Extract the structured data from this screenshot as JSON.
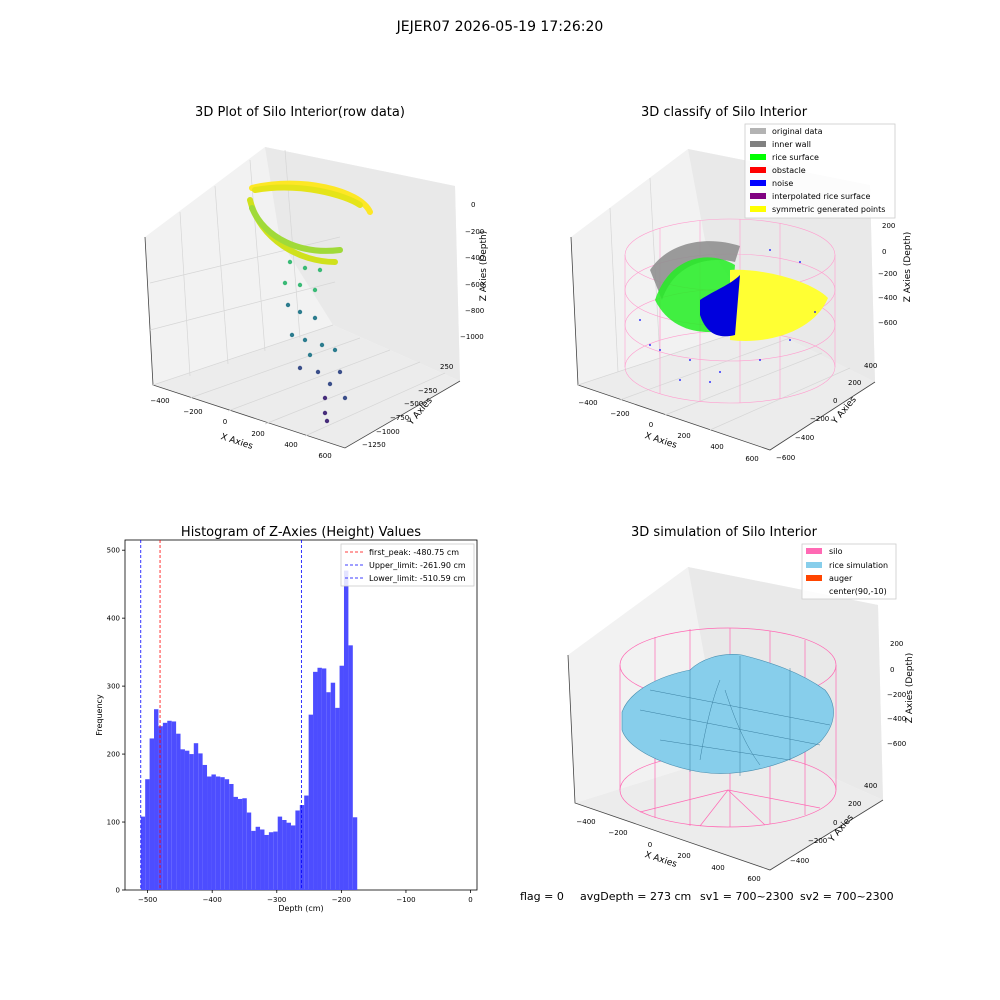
{
  "suptitle": "JEJER07 2026-05-19 17:26:20",
  "panels": {
    "raw": {
      "title": "3D Plot of Silo Interior(row data)",
      "xlabel": "X Axies",
      "ylabel": "Y Axies",
      "zlabel": "Z Axies (Depth)",
      "xticks": [
        "−400",
        "−200",
        "0",
        "200",
        "400",
        "600"
      ],
      "yticks": [
        "250",
        "−250",
        "−500",
        "−750",
        "−1000",
        "−1250"
      ],
      "zticks": [
        "0",
        "−200",
        "−400",
        "−600",
        "−800",
        "−1000"
      ]
    },
    "classify": {
      "title": "3D classify of Silo Interior",
      "xlabel": "X Axies",
      "ylabel": "Y Axies",
      "zlabel": "Z Axies (Depth)",
      "xticks": [
        "−400",
        "−200",
        "0",
        "200",
        "400",
        "600"
      ],
      "yticks": [
        "400",
        "200",
        "0",
        "−200",
        "−400",
        "−600"
      ],
      "zticks": [
        "200",
        "0",
        "−200",
        "−400",
        "−600"
      ],
      "legend": [
        {
          "label": "original data",
          "color": "#b3b3b3"
        },
        {
          "label": "inner wall",
          "color": "#808080"
        },
        {
          "label": "rice surface",
          "color": "#00ff00"
        },
        {
          "label": "obstacle",
          "color": "#ff0000"
        },
        {
          "label": "noise",
          "color": "#0000ff"
        },
        {
          "label": "interpolated rice surface",
          "color": "#800080"
        },
        {
          "label": "symmetric generated points",
          "color": "#ffff00"
        }
      ]
    },
    "simulation": {
      "title": "3D simulation of Silo Interior",
      "xlabel": "X Axies",
      "ylabel": "Y Axies",
      "zlabel": "Z Axies (Depth)",
      "xticks": [
        "−400",
        "−200",
        "0",
        "200",
        "400",
        "600"
      ],
      "yticks": [
        "400",
        "200",
        "0",
        "−200",
        "−400"
      ],
      "zticks": [
        "200",
        "0",
        "−200",
        "−400",
        "−600"
      ],
      "legend": [
        {
          "label": "silo",
          "color": "#ff69b4"
        },
        {
          "label": "rice simulation",
          "color": "#87ceeb"
        },
        {
          "label": "auger",
          "color": "#ff4500"
        },
        {
          "label": "center(90,-10)",
          "color": ""
        }
      ]
    }
  },
  "status": {
    "flag": "flag = 0",
    "avg": "avgDepth = 273 cm",
    "sv1": "sv1 = 700~2300",
    "sv2": "sv2 = 700~2300"
  },
  "chart_data": {
    "type": "bar",
    "title": "Histogram of Z-Axies (Height) Values",
    "xlabel": "Depth (cm)",
    "ylabel": "Frequency",
    "xlim": [
      -535,
      10
    ],
    "ylim": [
      0,
      515
    ],
    "xticks": [
      -500,
      -400,
      -300,
      -200,
      -100,
      0
    ],
    "xtick_labels": [
      "−500",
      "−400",
      "−300",
      "−200",
      "−100",
      "0"
    ],
    "yticks": [
      0,
      100,
      200,
      300,
      400,
      500
    ],
    "bin_start": -510.59,
    "bin_width": 6.84,
    "bar_color": "#4d4dff",
    "values": [
      108,
      163,
      223,
      266,
      241,
      246,
      249,
      248,
      230,
      207,
      205,
      200,
      216,
      201,
      184,
      167,
      170,
      167,
      166,
      163,
      156,
      137,
      134,
      135,
      114,
      87,
      93,
      89,
      81,
      85,
      86,
      108,
      103,
      99,
      95,
      117,
      125,
      139,
      258,
      321,
      327,
      326,
      291,
      305,
      268,
      330,
      470,
      360,
      107
    ],
    "vlines": [
      {
        "x": -480.75,
        "label": "first_peak: -480.75 cm",
        "color": "#ff0000"
      },
      {
        "x": -261.9,
        "label": "Upper_limit: -261.90 cm",
        "color": "#0000ff"
      },
      {
        "x": -510.59,
        "label": "Lower_limit: -510.59 cm",
        "color": "#0000ff"
      }
    ],
    "legend_position": "upper right"
  }
}
